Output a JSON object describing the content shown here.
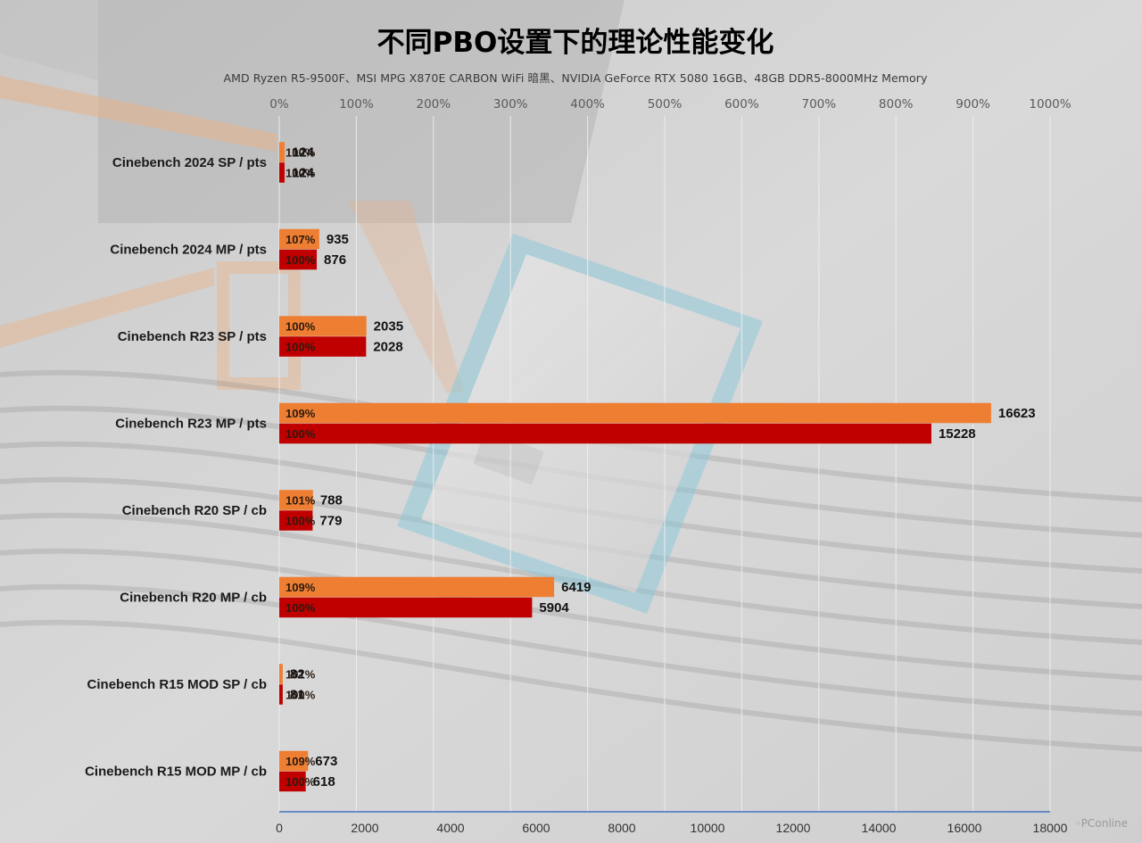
{
  "title": "不同PBO设置下的理论性能变化",
  "subtitle": "AMD Ryzen R5-9500F、MSI MPG X870E CARBON WiFi 暗黑、NVIDIA GeForce RTX 5080 16GB、48GB DDR5-8000MHz Memory",
  "watermark": "PConline",
  "colors": {
    "pbo_on": "#EE7E32",
    "pbo_off": "#C00000",
    "axis": "#4472C4"
  },
  "chart_data": {
    "type": "bar",
    "orientation": "horizontal",
    "title": "不同PBO设置下的理论性能变化",
    "categories": [
      "Cinebench 2024 SP / pts",
      "Cinebench 2024 MP / pts",
      "Cinebench R23 SP / pts",
      "Cinebench R23 MP / pts",
      "Cinebench R20 SP / cb",
      "Cinebench R20 MP / cb",
      "Cinebench R15 MOD SP / cb",
      "Cinebench R15 MOD MP / cb"
    ],
    "series": [
      {
        "color": "#EE7E32",
        "values": [
          124,
          935,
          2035,
          16623,
          788,
          6419,
          82,
          673
        ],
        "percent_labels": [
          "100%",
          "107%",
          "100%",
          "109%",
          "101%",
          "109%",
          "101%",
          "109%"
        ],
        "percent_values": [
          100,
          107,
          100,
          109,
          101,
          109,
          101,
          109
        ]
      },
      {
        "color": "#C00000",
        "values": [
          124,
          876,
          2028,
          15228,
          779,
          5904,
          81,
          618
        ],
        "percent_labels": [
          "100%",
          "100%",
          "100%",
          "100%",
          "100%",
          "100%",
          "100%",
          "100%"
        ],
        "percent_values": [
          100,
          100,
          100,
          100,
          100,
          100,
          100,
          100
        ]
      }
    ],
    "x_bottom": {
      "ticks": [
        "0",
        "2000",
        "4000",
        "6000",
        "8000",
        "10000",
        "12000",
        "14000",
        "16000",
        "18000"
      ],
      "range": [
        0,
        18000
      ]
    },
    "x_top": {
      "ticks": [
        "0%",
        "100%",
        "200%",
        "300%",
        "400%",
        "500%",
        "600%",
        "700%",
        "800%",
        "900%",
        "1000%"
      ],
      "range": [
        0,
        1000
      ]
    },
    "grid": true
  }
}
